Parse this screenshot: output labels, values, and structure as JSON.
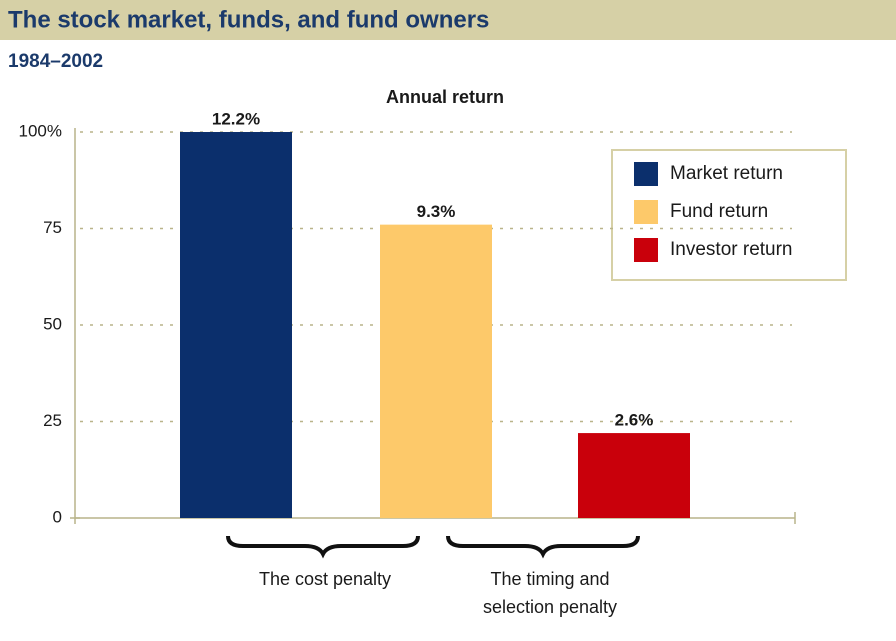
{
  "chart_data": {
    "type": "bar",
    "title": "The stock market, funds, and fund owners",
    "subtitle": "1984–2002",
    "chart_title": "Annual return",
    "values": [
      100,
      76,
      22
    ],
    "bar_labels": [
      "12.2%",
      "9.3%",
      "2.6%"
    ],
    "colors": [
      "#0b2f6c",
      "#fdc96a",
      "#c9000b"
    ],
    "legend": [
      "Market return",
      "Fund return",
      "Investor return"
    ],
    "ylim": [
      0,
      100
    ],
    "yticks": [
      0,
      25,
      50,
      75,
      {
        "value": 100,
        "label": "100%"
      }
    ],
    "grid": true,
    "annotations": [
      {
        "lines": [
          "The cost penalty"
        ]
      },
      {
        "lines": [
          "The timing and",
          "selection penalty"
        ]
      }
    ]
  }
}
